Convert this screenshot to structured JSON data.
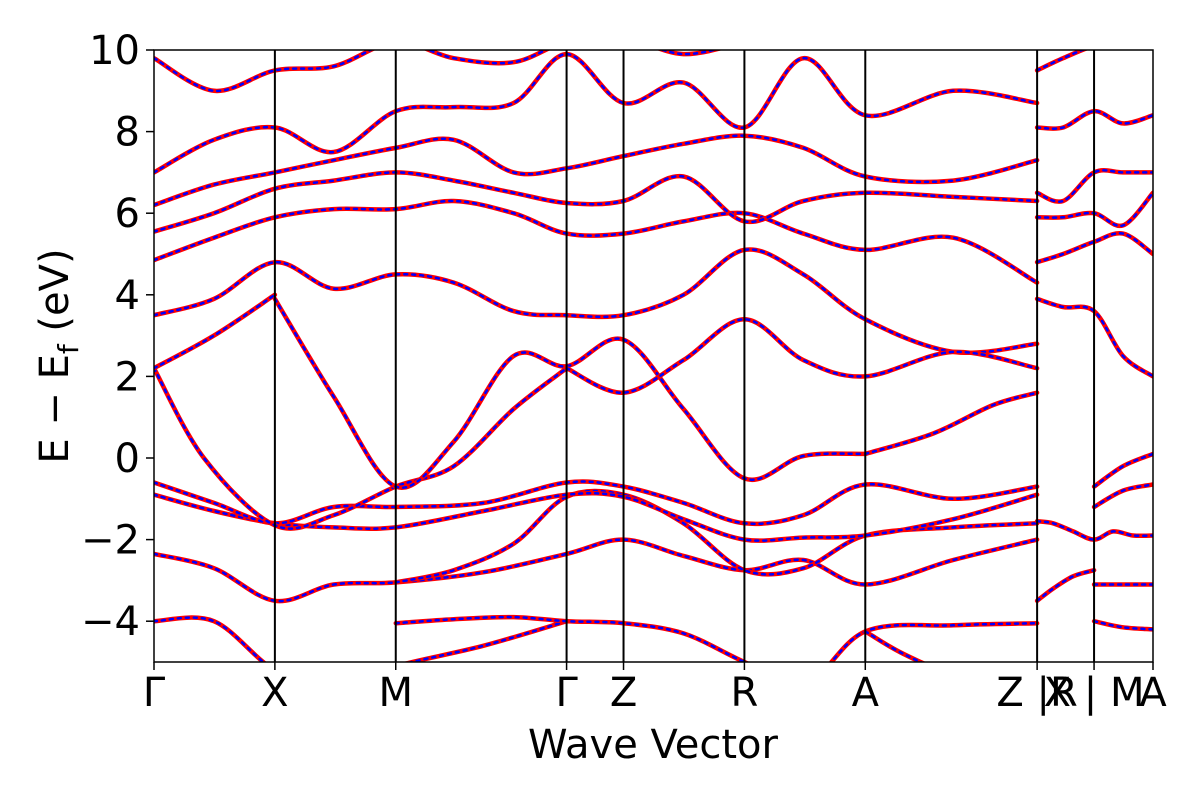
{
  "chart_data": {
    "type": "line",
    "title": "",
    "xlabel": "Wave Vector",
    "ylabel_parts": {
      "main": "E − E",
      "sub": "f",
      "unit": " (eV)"
    },
    "ylim": [
      -5,
      10
    ],
    "yticks": [
      -4,
      -2,
      0,
      2,
      4,
      6,
      8,
      10
    ],
    "ytick_labels": [
      "−4",
      "−2",
      "0",
      "2",
      "4",
      "6",
      "8",
      "10"
    ],
    "kpath": {
      "positions": [
        0,
        0.121,
        0.242,
        0.413,
        0.47,
        0.591,
        0.712,
        0.884,
        0.941,
        1.0
      ],
      "labels": [
        "Γ",
        "X",
        "M",
        "Γ",
        "Z",
        "R",
        "A",
        "Z |R",
        "X | M",
        "A"
      ],
      "breaks_after_index": [
        7,
        8
      ]
    },
    "colors": {
      "dft": "#ff0000",
      "model": "#0000ff"
    },
    "series_style": [
      {
        "style": "solid",
        "color": "#ff0000"
      },
      {
        "style": "dashed",
        "color": "#0000ff"
      }
    ],
    "bands": [
      {
        "x": [
          0,
          0.06,
          0.121,
          0.18,
          0.242,
          0.33,
          0.413
        ],
        "y": [
          -4.0,
          -4.0,
          -5.2,
          -5.6,
          -5.1,
          -4.6,
          -4.0
        ]
      },
      {
        "x": [
          0.242,
          0.3,
          0.36,
          0.413,
          0.47,
          0.53,
          0.591,
          0.65,
          0.712,
          0.8,
          0.884
        ],
        "y": [
          -4.05,
          -3.95,
          -3.9,
          -4.0,
          -4.05,
          -4.3,
          -5.0,
          -5.6,
          -4.25,
          -4.1,
          -4.05
        ]
      },
      {
        "x": [
          0.712,
          0.75,
          0.8,
          0.884
        ],
        "y": [
          -4.25,
          -4.8,
          -5.3,
          -5.8
        ]
      },
      {
        "x": [
          0,
          0.06,
          0.121,
          0.18,
          0.242,
          0.33,
          0.413,
          0.47,
          0.53,
          0.591,
          0.65,
          0.712,
          0.8,
          0.884
        ],
        "y": [
          -2.35,
          -2.7,
          -3.5,
          -3.1,
          -3.05,
          -2.8,
          -2.35,
          -2.0,
          -2.4,
          -2.75,
          -2.5,
          -3.1,
          -2.5,
          -2.0
        ]
      },
      {
        "x": [
          0.242,
          0.3,
          0.36,
          0.413,
          0.47,
          0.53,
          0.591,
          0.65,
          0.712,
          0.8,
          0.884
        ],
        "y": [
          -3.05,
          -2.75,
          -2.1,
          -0.95,
          -0.9,
          -1.6,
          -2.75,
          -2.7,
          -1.9,
          -1.7,
          -1.6
        ]
      },
      {
        "x": [
          0,
          0.06,
          0.121,
          0.18,
          0.242,
          0.33,
          0.413,
          0.47,
          0.53,
          0.591,
          0.65,
          0.712,
          0.8,
          0.884
        ],
        "y": [
          -0.9,
          -1.3,
          -1.6,
          -1.7,
          -1.7,
          -1.3,
          -0.9,
          -0.95,
          -1.5,
          -2.0,
          -1.95,
          -1.9,
          -1.5,
          -0.9
        ]
      },
      {
        "x": [
          0,
          0.06,
          0.121,
          0.18,
          0.242,
          0.33,
          0.413,
          0.47,
          0.53,
          0.591,
          0.65,
          0.712,
          0.8,
          0.884
        ],
        "y": [
          -0.6,
          -1.1,
          -1.6,
          -1.2,
          -1.2,
          -1.1,
          -0.6,
          -0.7,
          -1.1,
          -1.6,
          -1.4,
          -0.65,
          -1.0,
          -0.7
        ]
      },
      {
        "x": [
          0,
          0.05,
          0.121,
          0.18,
          0.242,
          0.3,
          0.36,
          0.413
        ],
        "y": [
          2.2,
          0.0,
          -1.65,
          -1.4,
          -0.7,
          -0.2,
          1.2,
          2.2
        ]
      },
      {
        "x": [
          0.121,
          0.18,
          0.242,
          0.3,
          0.36,
          0.413,
          0.47,
          0.53,
          0.591,
          0.65,
          0.712
        ],
        "y": [
          3.9,
          1.5,
          -0.7,
          0.4,
          2.5,
          2.25,
          2.9,
          1.2,
          -0.5,
          0.05,
          0.1
        ]
      },
      {
        "x": [
          0.712,
          0.78,
          0.84,
          0.884
        ],
        "y": [
          0.1,
          0.6,
          1.3,
          1.6
        ]
      },
      {
        "x": [
          0,
          0.06,
          0.121
        ],
        "y": [
          2.2,
          3.0,
          4.0
        ]
      },
      {
        "x": [
          0,
          0.06,
          0.121,
          0.18,
          0.242,
          0.3,
          0.36,
          0.413,
          0.47,
          0.53,
          0.591,
          0.65,
          0.712,
          0.8,
          0.884
        ],
        "y": [
          3.5,
          3.9,
          4.8,
          4.15,
          4.5,
          4.3,
          3.6,
          3.5,
          3.5,
          4.0,
          5.1,
          4.5,
          3.4,
          2.6,
          2.8
        ]
      },
      {
        "x": [
          0.413,
          0.47,
          0.53,
          0.591,
          0.65,
          0.712,
          0.8,
          0.884
        ],
        "y": [
          2.2,
          1.6,
          2.4,
          3.4,
          2.4,
          2.0,
          2.6,
          2.2
        ]
      },
      {
        "x": [
          0,
          0.06,
          0.121,
          0.18,
          0.242,
          0.3,
          0.36,
          0.413,
          0.47,
          0.53,
          0.591,
          0.65,
          0.712,
          0.8,
          0.884
        ],
        "y": [
          4.85,
          5.4,
          5.9,
          6.1,
          6.1,
          6.3,
          6.0,
          5.5,
          5.5,
          5.8,
          6.0,
          5.5,
          5.1,
          5.4,
          4.3
        ]
      },
      {
        "x": [
          0,
          0.06,
          0.121,
          0.18,
          0.242,
          0.3,
          0.36,
          0.413,
          0.47,
          0.53,
          0.591,
          0.65,
          0.712,
          0.8,
          0.884
        ],
        "y": [
          5.55,
          6.0,
          6.6,
          6.8,
          7.0,
          6.8,
          6.5,
          6.25,
          6.3,
          6.9,
          5.8,
          6.3,
          6.5,
          6.4,
          6.3
        ]
      },
      {
        "x": [
          0,
          0.06,
          0.121,
          0.18,
          0.242,
          0.3,
          0.36,
          0.413,
          0.47,
          0.53,
          0.591,
          0.65,
          0.712,
          0.8,
          0.884
        ],
        "y": [
          6.2,
          6.7,
          7.0,
          7.3,
          7.6,
          7.8,
          7.0,
          7.1,
          7.4,
          7.7,
          7.9,
          7.6,
          6.9,
          6.8,
          7.3
        ]
      },
      {
        "x": [
          0,
          0.06,
          0.121,
          0.18,
          0.242,
          0.3,
          0.36,
          0.413,
          0.47,
          0.53,
          0.591,
          0.65,
          0.712,
          0.8,
          0.884
        ],
        "y": [
          7.0,
          7.8,
          8.1,
          7.5,
          8.5,
          8.6,
          8.7,
          9.9,
          8.7,
          9.2,
          8.1,
          9.8,
          8.4,
          9.0,
          8.7
        ]
      },
      {
        "x": [
          0,
          0.06,
          0.121,
          0.18,
          0.242,
          0.3,
          0.36,
          0.413,
          0.47,
          0.53,
          0.591
        ],
        "y": [
          9.8,
          9.0,
          9.5,
          9.6,
          10.2,
          9.8,
          9.7,
          10.2,
          10.3,
          9.9,
          10.2
        ]
      },
      {
        "x": [
          0.884,
          0.9,
          0.92,
          0.941,
          0.96,
          0.98,
          1.0
        ],
        "y": [
          -1.55,
          -1.6,
          -1.8,
          -2.0,
          -1.8,
          -1.9,
          -1.9
        ]
      },
      {
        "x": [
          0.884,
          0.9,
          0.92,
          0.941
        ],
        "y": [
          -3.5,
          -3.2,
          -2.9,
          -2.75
        ]
      },
      {
        "x": [
          0.941,
          0.97,
          1.0
        ],
        "y": [
          -0.7,
          -0.2,
          0.1
        ]
      },
      {
        "x": [
          0.941,
          0.97,
          1.0
        ],
        "y": [
          -1.2,
          -0.8,
          -0.65
        ]
      },
      {
        "x": [
          0.941,
          0.97,
          1.0
        ],
        "y": [
          -3.1,
          -3.1,
          -3.1
        ]
      },
      {
        "x": [
          0.941,
          0.97,
          1.0
        ],
        "y": [
          -4.0,
          -4.15,
          -4.2
        ]
      },
      {
        "x": [
          0.884,
          0.91,
          0.941,
          0.97,
          1.0
        ],
        "y": [
          3.9,
          3.7,
          3.6,
          2.5,
          2.0
        ]
      },
      {
        "x": [
          0.884,
          0.91,
          0.941,
          0.97,
          1.0
        ],
        "y": [
          4.8,
          5.0,
          5.3,
          5.5,
          5.0
        ]
      },
      {
        "x": [
          0.884,
          0.91,
          0.941,
          0.97,
          1.0
        ],
        "y": [
          5.9,
          5.9,
          6.0,
          5.7,
          6.5
        ]
      },
      {
        "x": [
          0.884,
          0.91,
          0.941,
          0.97,
          1.0
        ],
        "y": [
          6.5,
          6.3,
          7.0,
          7.0,
          7.0
        ]
      },
      {
        "x": [
          0.884,
          0.91,
          0.941,
          0.97,
          1.0
        ],
        "y": [
          8.1,
          8.1,
          8.5,
          8.2,
          8.4
        ]
      },
      {
        "x": [
          0.884,
          0.91,
          0.941,
          0.97,
          1.0
        ],
        "y": [
          9.5,
          9.8,
          10.1,
          10.2,
          10.3
        ]
      }
    ]
  }
}
